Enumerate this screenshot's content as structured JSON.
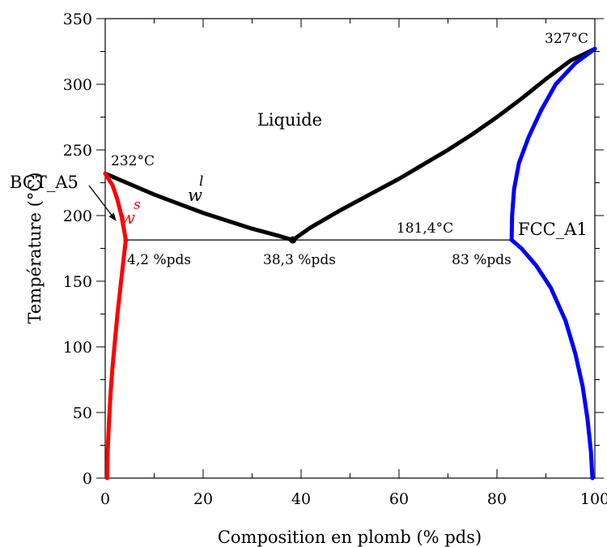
{
  "chart_data": {
    "type": "line",
    "title": "",
    "xlabel": "Composition en plomb (% pds)",
    "ylabel": "Température (°C)",
    "xlim": [
      0,
      100
    ],
    "ylim": [
      0,
      350
    ],
    "x_ticks": [
      "0",
      "20",
      "40",
      "60",
      "80",
      "100"
    ],
    "y_ticks": [
      "0",
      "50",
      "100",
      "150",
      "200",
      "250",
      "300",
      "350"
    ],
    "grid": false,
    "series": [
      {
        "color": "#000000",
        "points": [
          [
            0,
            232
          ],
          [
            5,
            224
          ],
          [
            10,
            216
          ],
          [
            15,
            209
          ],
          [
            20,
            202
          ],
          [
            25,
            196
          ],
          [
            30,
            190
          ],
          [
            35,
            185
          ],
          [
            38.3,
            181.4
          ]
        ]
      },
      {
        "color": "#000000",
        "points": [
          [
            38.3,
            181.4
          ],
          [
            42,
            191
          ],
          [
            48,
            204
          ],
          [
            55,
            218
          ],
          [
            60,
            228
          ],
          [
            65,
            239
          ],
          [
            70,
            250
          ],
          [
            75,
            262
          ],
          [
            80,
            275
          ],
          [
            85,
            289
          ],
          [
            90,
            304
          ],
          [
            95,
            318
          ],
          [
            100,
            327
          ]
        ]
      },
      {
        "color": "#ff0000",
        "points": [
          [
            0,
            232
          ],
          [
            1.5,
            223
          ],
          [
            2.5,
            212
          ],
          [
            3.3,
            200
          ],
          [
            3.8,
            190
          ],
          [
            4.2,
            181.4
          ]
        ]
      },
      {
        "color": "#ff0000",
        "points": [
          [
            4.2,
            181.4
          ],
          [
            3.7,
            165
          ],
          [
            3.1,
            145
          ],
          [
            2.5,
            125
          ],
          [
            2.0,
            105
          ],
          [
            1.5,
            85
          ],
          [
            1.1,
            65
          ],
          [
            0.8,
            45
          ],
          [
            0.5,
            20
          ],
          [
            0.4,
            0
          ]
        ]
      },
      {
        "color": "#0000ff",
        "points": [
          [
            100,
            327
          ],
          [
            96,
            316
          ],
          [
            92,
            300
          ],
          [
            89,
            280
          ],
          [
            86.5,
            260
          ],
          [
            84.5,
            240
          ],
          [
            83.5,
            220
          ],
          [
            83.1,
            200
          ],
          [
            83,
            181.4
          ]
        ]
      },
      {
        "color": "#0000ff",
        "points": [
          [
            83,
            181.4
          ],
          [
            85,
            175
          ],
          [
            88,
            162
          ],
          [
            91,
            145
          ],
          [
            94,
            120
          ],
          [
            96,
            95
          ],
          [
            97.5,
            70
          ],
          [
            98.5,
            45
          ],
          [
            99.2,
            20
          ],
          [
            99.5,
            0
          ]
        ]
      },
      {
        "color": "#000000",
        "points": [
          [
            4.2,
            181.4
          ],
          [
            83,
            181.4
          ]
        ]
      }
    ],
    "annotations": {
      "liquide": "Liquide",
      "sn_melt": "232°C",
      "pb_melt": "327°C",
      "eutectic_temp": "181,4°C",
      "bct_a5": "BCT_A5",
      "fcc_a1": "FCC_A1",
      "comp_solid_sn": "4,2 %pds",
      "comp_eutectic": "38,3 %pds",
      "comp_solid_pb": "83 %pds",
      "w_liquid": "w",
      "w_liquid_sup": "l",
      "w_solid": "w",
      "w_solid_sup": "s"
    }
  }
}
